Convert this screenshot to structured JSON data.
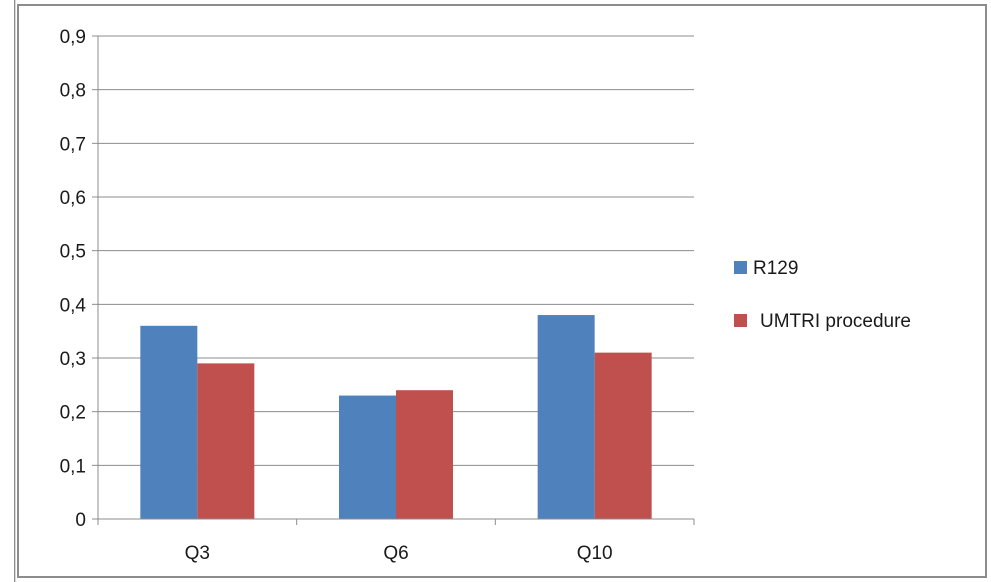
{
  "chart_data": {
    "type": "bar",
    "categories": [
      "Q3",
      "Q6",
      "Q10"
    ],
    "series": [
      {
        "name": "R129",
        "values": [
          0.36,
          0.23,
          0.38
        ],
        "color": "#4f81bd"
      },
      {
        "name": "UMTRI procedure",
        "values": [
          0.29,
          0.24,
          0.31
        ],
        "color": "#c0504d"
      }
    ],
    "ylim": [
      0,
      0.9
    ],
    "yticks": [
      "0",
      "0,1",
      "0,2",
      "0,3",
      "0,4",
      "0,5",
      "0,6",
      "0,7",
      "0,8",
      "0,9"
    ],
    "title": "",
    "xlabel": "",
    "ylabel": "",
    "grid": true,
    "legend_position": "right"
  }
}
